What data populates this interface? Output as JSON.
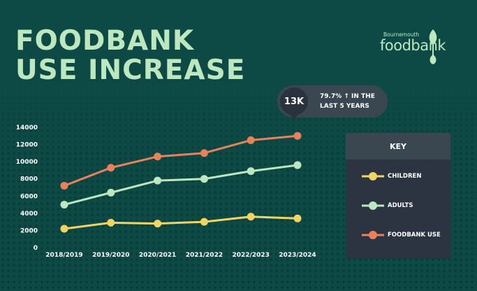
{
  "header": {
    "title": "FOODBANK\nUSE INCREASE"
  },
  "logo": {
    "small_text": "Bournemouth",
    "big_text": "foodbank"
  },
  "callout": {
    "badge": "13K",
    "text": "79.7% ↑ IN THE\nLAST 5 YEARS"
  },
  "key": {
    "title": "KEY",
    "items": [
      {
        "label": "CHILDREN",
        "color": "#f2d462"
      },
      {
        "label": "ADULTS",
        "color": "#bde8bf"
      },
      {
        "label": "FOODBANK USE",
        "color": "#e8825a"
      }
    ]
  },
  "chart_data": {
    "type": "line",
    "categories": [
      "2018/2019",
      "2019/2020",
      "2020/2021",
      "2021/2022",
      "2022/2023",
      "2023/2024"
    ],
    "ylim": [
      0,
      14000
    ],
    "yticks": [
      0,
      2000,
      4000,
      6000,
      8000,
      10000,
      12000,
      14000
    ],
    "series": [
      {
        "name": "CHILDREN",
        "color": "#f2d462",
        "values": [
          2200,
          2900,
          2800,
          3000,
          3600,
          3400
        ]
      },
      {
        "name": "ADULTS",
        "color": "#bde8bf",
        "values": [
          5000,
          6400,
          7800,
          8000,
          8900,
          9600
        ]
      },
      {
        "name": "FOODBANK USE",
        "color": "#e8825a",
        "values": [
          7200,
          9300,
          10600,
          11000,
          12500,
          13000
        ]
      }
    ],
    "grid": false,
    "legend": "right"
  }
}
